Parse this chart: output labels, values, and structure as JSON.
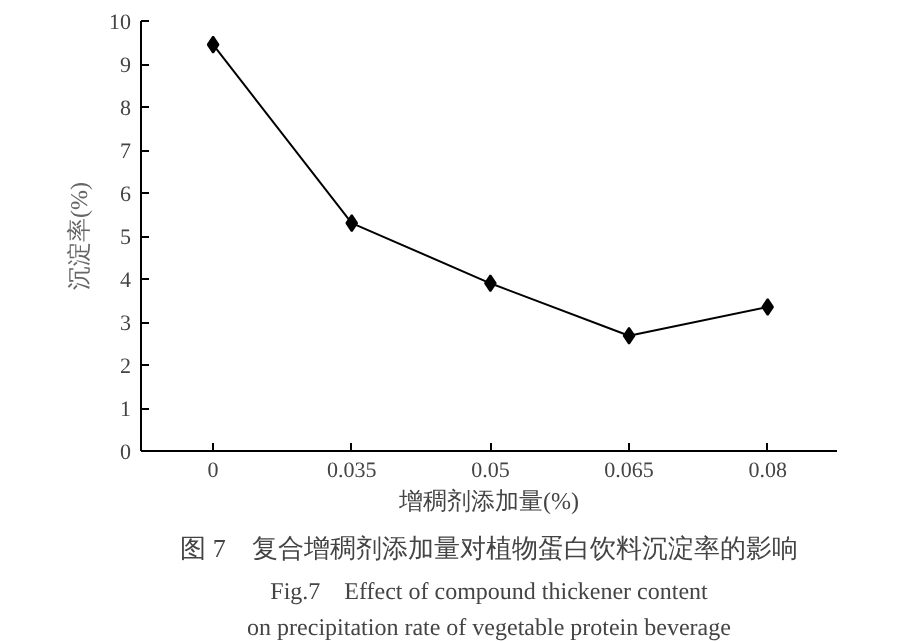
{
  "chart_data": {
    "type": "line",
    "title": "图 7　复合增稠剂添加量对植物蛋白饮料沉淀率的影响",
    "annotations": [
      "Fig.7　Effect of compound thickener content",
      "on precipitation rate of vegetable protein beverage"
    ],
    "xlabel": "增稠剂添加量(%)",
    "ylabel": "沉淀率(%)",
    "categories": [
      "0",
      "0.035",
      "0.05",
      "0.065",
      "0.08"
    ],
    "series": [
      {
        "color": "#000000",
        "values": [
          9.45,
          5.3,
          3.9,
          2.68,
          3.35
        ]
      }
    ],
    "ylim": [
      0,
      10
    ],
    "yticks": [
      0,
      1,
      2,
      3,
      4,
      5,
      6,
      7,
      8,
      9,
      10
    ],
    "marker": "diamond",
    "line_style": "solid",
    "grid": false
  }
}
